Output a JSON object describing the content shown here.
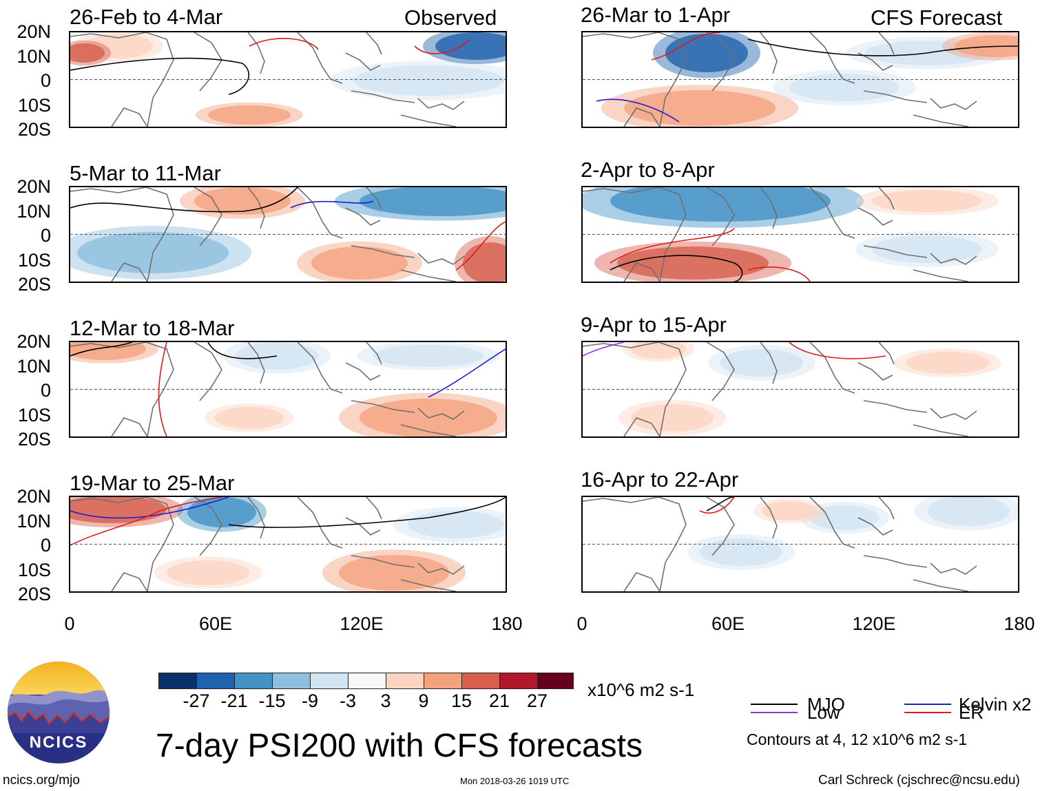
{
  "header": {
    "observed_label": "Observed",
    "forecast_label": "CFS Forecast"
  },
  "panels_left": [
    {
      "period": "26-Feb to 4-Mar"
    },
    {
      "period": "5-Mar to 11-Mar"
    },
    {
      "period": "12-Mar to 18-Mar"
    },
    {
      "period": "19-Mar to 25-Mar"
    }
  ],
  "panels_right": [
    {
      "period": "26-Mar to 1-Apr"
    },
    {
      "period": "2-Apr to 8-Apr"
    },
    {
      "period": "9-Apr to 15-Apr"
    },
    {
      "period": "16-Apr to 22-Apr"
    }
  ],
  "axes": {
    "lat_labels": [
      "20N",
      "10N",
      "0",
      "10S",
      "20S"
    ],
    "lon_labels": [
      "0",
      "60E",
      "120E",
      "180"
    ]
  },
  "colorbar": {
    "colors": [
      "#08306b",
      "#1f62ad",
      "#4292c6",
      "#8dbfde",
      "#d2e5f2",
      "#f7f7f7",
      "#fbd5c1",
      "#f4a27e",
      "#d6604d",
      "#b2182b",
      "#67001f"
    ],
    "labels": [
      "-27",
      "-21",
      "-15",
      "-9",
      "-3",
      "3",
      "9",
      "15",
      "21",
      "27"
    ],
    "units": "x10^6 m2 s-1"
  },
  "legend": {
    "mjo": {
      "label": "MJO",
      "color": "#000000"
    },
    "kelvin": {
      "label": "Kelvin x2",
      "color": "#1c1cd6"
    },
    "low": {
      "label": "Low",
      "color": "#9a2fd6"
    },
    "er": {
      "label": "ER",
      "color": "#e01818"
    },
    "contours_note": "Contours at 4, 12 x10^6 m2 s-1"
  },
  "footer": {
    "main_title": "7-day PSI200 with CFS forecasts",
    "logo_text": "NCICS",
    "website": "ncics.org/mjo",
    "timestamp": "Mon 2018-03-26 1019 UTC",
    "credit": "Carl Schreck (cjschrec@ncsu.edu)"
  }
}
